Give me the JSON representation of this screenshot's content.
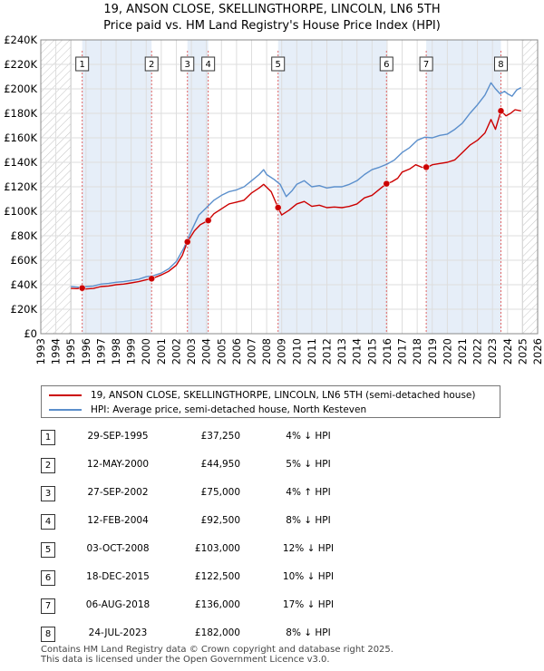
{
  "header": {
    "title_line1": "19, ANSON CLOSE, SKELLINGTHORPE, LINCOLN, LN6 5TH",
    "title_line2": "Price paid vs. HM Land Registry's House Price Index (HPI)"
  },
  "legend": {
    "property_label": "19, ANSON CLOSE, SKELLINGTHORPE, LINCOLN, LN6 5TH (semi-detached house)",
    "hpi_label": "HPI: Average price, semi-detached house, North Kesteven"
  },
  "colors": {
    "property_line": "#cc0000",
    "hpi_line": "#5b8fcc",
    "marker_line": "#e06666",
    "shade": "#e6eef8",
    "grid": "#dddddd"
  },
  "chart_data": {
    "type": "line",
    "title": "19, ANSON CLOSE, SKELLINGTHORPE, LINCOLN, LN6 5TH",
    "subtitle": "Price paid vs. HM Land Registry's House Price Index (HPI)",
    "xlabel": "",
    "ylabel": "",
    "xlim": [
      1993,
      2026
    ],
    "ylim": [
      0,
      240000
    ],
    "x_ticks": [
      1993,
      1994,
      1995,
      1996,
      1997,
      1998,
      1999,
      2000,
      2001,
      2002,
      2003,
      2004,
      2005,
      2006,
      2007,
      2008,
      2009,
      2010,
      2011,
      2012,
      2013,
      2014,
      2015,
      2016,
      2017,
      2018,
      2019,
      2020,
      2021,
      2022,
      2023,
      2024,
      2025,
      2026
    ],
    "y_ticks": [
      {
        "value": 0,
        "label": "£0"
      },
      {
        "value": 20000,
        "label": "£20K"
      },
      {
        "value": 40000,
        "label": "£40K"
      },
      {
        "value": 60000,
        "label": "£60K"
      },
      {
        "value": 80000,
        "label": "£80K"
      },
      {
        "value": 100000,
        "label": "£100K"
      },
      {
        "value": 120000,
        "label": "£120K"
      },
      {
        "value": 140000,
        "label": "£140K"
      },
      {
        "value": 160000,
        "label": "£160K"
      },
      {
        "value": 180000,
        "label": "£180K"
      },
      {
        "value": 200000,
        "label": "£200K"
      },
      {
        "value": 220000,
        "label": "£220K"
      },
      {
        "value": 240000,
        "label": "£240K"
      }
    ],
    "grid": true,
    "shaded_ranges": [
      [
        1993,
        1995.0
      ],
      [
        2025.0,
        2026
      ]
    ],
    "hatched_ranges": [
      [
        1993,
        1995.0
      ],
      [
        2025.0,
        2026
      ]
    ],
    "series": [
      {
        "name": "HPI: Average price, semi-detached house, North Kesteven",
        "x": [
          1995.0,
          1995.5,
          1996.0,
          1996.5,
          1997.0,
          1997.5,
          1998.0,
          1998.5,
          1999.0,
          1999.5,
          2000.0,
          2000.5,
          2001.0,
          2001.5,
          2002.0,
          2002.5,
          2003.0,
          2003.5,
          2004.0,
          2004.5,
          2005.0,
          2005.5,
          2006.0,
          2006.5,
          2007.0,
          2007.5,
          2007.8,
          2008.0,
          2008.5,
          2008.9,
          2009.3,
          2009.7,
          2010.0,
          2010.5,
          2011.0,
          2011.5,
          2012.0,
          2012.5,
          2013.0,
          2013.5,
          2014.0,
          2014.5,
          2015.0,
          2015.5,
          2016.0,
          2016.5,
          2017.0,
          2017.5,
          2018.0,
          2018.5,
          2019.0,
          2019.5,
          2020.0,
          2020.5,
          2021.0,
          2021.5,
          2022.0,
          2022.5,
          2022.9,
          2023.2,
          2023.5,
          2023.8,
          2024.0,
          2024.3,
          2024.6,
          2024.9
        ],
        "values": [
          38500,
          38000,
          38500,
          39000,
          40500,
          41000,
          42000,
          42500,
          43500,
          44500,
          46500,
          47500,
          49500,
          53000,
          59000,
          70000,
          84000,
          97000,
          103000,
          109000,
          113000,
          116000,
          117500,
          120000,
          125000,
          130000,
          134000,
          130000,
          126000,
          122000,
          112000,
          117000,
          122000,
          125000,
          120000,
          121000,
          119000,
          120000,
          120000,
          122000,
          125000,
          130000,
          134000,
          136000,
          138500,
          142000,
          148000,
          152000,
          158000,
          160500,
          160000,
          162000,
          163000,
          167000,
          172000,
          180000,
          187000,
          195000,
          205000,
          200000,
          196000,
          198000,
          196000,
          194000,
          199000,
          201000
        ]
      },
      {
        "name": "19, ANSON CLOSE, SKELLINGTHORPE, LINCOLN, LN6 5TH (semi-detached house)",
        "x": [
          1995.0,
          1995.4,
          1995.75,
          1996.0,
          1996.5,
          1997.0,
          1997.5,
          1998.0,
          1998.5,
          1999.0,
          1999.5,
          2000.0,
          2000.36,
          2000.7,
          2001.0,
          2001.5,
          2002.0,
          2002.4,
          2002.74,
          2003.2,
          2003.6,
          2004.12,
          2004.5,
          2005.0,
          2005.5,
          2006.0,
          2006.5,
          2007.0,
          2007.5,
          2007.8,
          2008.3,
          2008.76,
          2009.0,
          2009.5,
          2010.0,
          2010.5,
          2011.0,
          2011.5,
          2012.0,
          2012.5,
          2013.0,
          2013.5,
          2014.0,
          2014.5,
          2015.0,
          2015.5,
          2015.96,
          2016.3,
          2016.7,
          2017.0,
          2017.5,
          2017.9,
          2018.3,
          2018.6,
          2019.0,
          2019.5,
          2020.0,
          2020.5,
          2021.0,
          2021.5,
          2022.0,
          2022.5,
          2022.9,
          2023.2,
          2023.56,
          2023.9,
          2024.2,
          2024.5,
          2024.9
        ],
        "values": [
          37000,
          36800,
          37250,
          36500,
          37000,
          38500,
          39000,
          40000,
          40500,
          41500,
          42500,
          44000,
          44950,
          46500,
          48000,
          51000,
          56000,
          64000,
          75000,
          84000,
          89000,
          92500,
          98000,
          102000,
          106000,
          107500,
          109000,
          115000,
          119000,
          122000,
          116000,
          103000,
          97000,
          101000,
          106000,
          108000,
          104000,
          105000,
          103000,
          103500,
          103000,
          104000,
          106000,
          111000,
          113000,
          118000,
          122500,
          124000,
          127000,
          132000,
          134500,
          138000,
          136000,
          135500,
          138000,
          139000,
          140000,
          142000,
          148000,
          154000,
          158000,
          164000,
          175000,
          167000,
          182000,
          178000,
          180000,
          183000,
          182000
        ]
      }
    ],
    "transactions": [
      {
        "id": "1",
        "x": 1995.75,
        "date": "29-SEP-1995",
        "price": 37250,
        "price_label": "£37,250",
        "hpi_change": "4% ↓ HPI"
      },
      {
        "id": "2",
        "x": 2000.36,
        "date": "12-MAY-2000",
        "price": 44950,
        "price_label": "£44,950",
        "hpi_change": "5% ↓ HPI"
      },
      {
        "id": "3",
        "x": 2002.74,
        "date": "27-SEP-2002",
        "price": 75000,
        "price_label": "£75,000",
        "hpi_change": "4% ↑ HPI"
      },
      {
        "id": "4",
        "x": 2004.12,
        "date": "12-FEB-2004",
        "price": 92500,
        "price_label": "£92,500",
        "hpi_change": "8% ↓ HPI"
      },
      {
        "id": "5",
        "x": 2008.76,
        "date": "03-OCT-2008",
        "price": 103000,
        "price_label": "£103,000",
        "hpi_change": "12% ↓ HPI"
      },
      {
        "id": "6",
        "x": 2015.96,
        "date": "18-DEC-2015",
        "price": 122500,
        "price_label": "£122,500",
        "hpi_change": "10% ↓ HPI"
      },
      {
        "id": "7",
        "x": 2018.6,
        "date": "06-AUG-2018",
        "price": 136000,
        "price_label": "£136,000",
        "hpi_change": "17% ↓ HPI"
      },
      {
        "id": "8",
        "x": 2023.56,
        "date": "24-JUL-2023",
        "price": 182000,
        "price_label": "£182,000",
        "hpi_change": "8% ↓ HPI"
      }
    ]
  },
  "footer": {
    "line1": "Contains HM Land Registry data © Crown copyright and database right 2025.",
    "line2": "This data is licensed under the Open Government Licence v3.0."
  }
}
